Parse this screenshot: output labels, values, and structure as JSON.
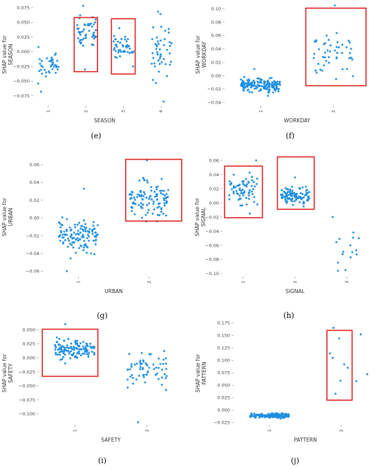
{
  "figure": {
    "background": "#ffffff",
    "point_color": "#1f8fe0",
    "box_color": "#e02020"
  },
  "chart_data": [
    {
      "type": "scatter",
      "panel": "(e)",
      "title": "",
      "xlabel": "SEASON",
      "ylabel": [
        "SHAP value for",
        "SEASON"
      ],
      "categories": [
        "1",
        "2",
        "3",
        "4"
      ],
      "xlim": [
        0.6,
        4.4
      ],
      "ylim": [
        -0.092,
        0.082
      ],
      "yticks": [
        -0.075,
        -0.05,
        -0.025,
        0.0,
        0.025,
        0.05,
        0.075
      ],
      "ytick_labels": [
        "−0.075",
        "−0.050",
        "−0.025",
        "0.000",
        "0.025",
        "0.050",
        "0.075"
      ],
      "groups": [
        {
          "category": "1",
          "n": 40,
          "min": -0.068,
          "max": 0.008,
          "center": -0.023,
          "spread": 0.015
        },
        {
          "category": "2",
          "n": 52,
          "min": -0.03,
          "max": 0.078,
          "center": 0.028,
          "spread": 0.022
        },
        {
          "category": "3",
          "n": 44,
          "min": -0.025,
          "max": 0.04,
          "center": 0.008,
          "spread": 0.014
        },
        {
          "category": "4",
          "n": 48,
          "min": -0.085,
          "max": 0.068,
          "center": -0.005,
          "spread": 0.035
        }
      ],
      "highlight_boxes": [
        {
          "x": [
            1.69,
            2.31
          ],
          "y": [
            -0.034,
            0.058
          ]
        },
        {
          "x": [
            2.68,
            3.31
          ],
          "y": [
            -0.038,
            0.056
          ]
        }
      ],
      "grid": false
    },
    {
      "type": "scatter",
      "panel": "(f)",
      "title": "",
      "xlabel": "WORKDAY",
      "ylabel": [
        "SHAP value for",
        "WORKDAY"
      ],
      "categories": [
        "1",
        "2"
      ],
      "xlim": [
        0.5,
        2.5
      ],
      "ylim": [
        -0.045,
        0.108
      ],
      "yticks": [
        -0.04,
        -0.02,
        0.0,
        0.02,
        0.04,
        0.06,
        0.08,
        0.1
      ],
      "ytick_labels": [
        "−0.04",
        "−0.02",
        "0.00",
        "0.02",
        "0.04",
        "0.06",
        "0.08",
        "0.10"
      ],
      "groups": [
        {
          "category": "1",
          "n": 160,
          "min": -0.03,
          "max": 0.01,
          "center": -0.014,
          "spread": 0.007
        },
        {
          "category": "2",
          "n": 48,
          "min": -0.005,
          "max": 0.105,
          "center": 0.035,
          "spread": 0.02
        }
      ],
      "highlight_boxes": [
        {
          "x": [
            1.62,
            2.45
          ],
          "y": [
            -0.015,
            0.101
          ]
        }
      ],
      "grid": false
    },
    {
      "type": "scatter",
      "panel": "(g)",
      "title": "",
      "xlabel": "URBAN",
      "ylabel": [
        "SHAP value for",
        "URBAN"
      ],
      "categories": [
        "1",
        "2"
      ],
      "xlim": [
        0.5,
        2.5
      ],
      "ylim": [
        -0.066,
        0.068
      ],
      "yticks": [
        -0.06,
        -0.04,
        -0.02,
        0.0,
        0.02,
        0.04,
        0.06
      ],
      "ytick_labels": [
        "−0.06",
        "−0.04",
        "−0.02",
        "0.00",
        "0.02",
        "0.04",
        "0.06"
      ],
      "groups": [
        {
          "category": "1",
          "n": 120,
          "min": -0.06,
          "max": 0.033,
          "center": -0.022,
          "spread": 0.013
        },
        {
          "category": "2",
          "n": 110,
          "min": -0.004,
          "max": 0.065,
          "center": 0.02,
          "spread": 0.014
        }
      ],
      "highlight_boxes": [
        {
          "x": [
            1.67,
            2.46
          ],
          "y": [
            -0.0035,
            0.066
          ]
        }
      ],
      "grid": false
    },
    {
      "type": "scatter",
      "panel": "(h)",
      "title": "",
      "xlabel": "SIGNAL",
      "ylabel": [
        "SHAP value for",
        "SIGNAL"
      ],
      "categories": [
        "1",
        "2",
        "3"
      ],
      "xlim": [
        0.6,
        3.4
      ],
      "ylim": [
        -0.104,
        0.064
      ],
      "yticks": [
        -0.1,
        -0.08,
        -0.06,
        -0.04,
        -0.02,
        0.0,
        0.02,
        0.04,
        0.06
      ],
      "ytick_labels": [
        "−0.10",
        "−0.08",
        "−0.06",
        "−0.04",
        "−0.02",
        "0.00",
        "0.02",
        "0.04",
        "0.06"
      ],
      "groups": [
        {
          "category": "1",
          "n": 70,
          "min": -0.015,
          "max": 0.06,
          "center": 0.02,
          "spread": 0.015
        },
        {
          "category": "2",
          "n": 110,
          "min": -0.005,
          "max": 0.036,
          "center": 0.01,
          "spread": 0.009
        },
        {
          "category": "3",
          "n": 16,
          "min": -0.096,
          "max": -0.02,
          "center": -0.058,
          "spread": 0.02
        }
      ],
      "highlight_boxes": [
        {
          "x": [
            0.64,
            1.37
          ],
          "y": [
            -0.021,
            0.052
          ]
        },
        {
          "x": [
            1.66,
            2.37
          ],
          "y": [
            -0.009,
            0.065
          ]
        }
      ],
      "grid": false
    },
    {
      "type": "scatter",
      "panel": "(i)",
      "title": "",
      "xlabel": "SAFETY",
      "ylabel": [
        "SHAP value for",
        "SAFETY"
      ],
      "categories": [
        "1",
        "2"
      ],
      "xlim": [
        0.5,
        2.5
      ],
      "ylim": [
        -0.12,
        0.065
      ],
      "yticks": [
        -0.1,
        -0.075,
        -0.05,
        -0.025,
        0.0,
        0.025,
        0.05
      ],
      "ytick_labels": [
        "−0.100",
        "−0.075",
        "−0.050",
        "−0.025",
        "0.000",
        "0.025",
        "0.050"
      ],
      "groups": [
        {
          "category": "1",
          "n": 130,
          "min": -0.01,
          "max": 0.06,
          "center": 0.016,
          "spread": 0.011
        },
        {
          "category": "2",
          "n": 65,
          "min": -0.115,
          "max": 0.012,
          "center": -0.022,
          "spread": 0.018
        }
      ],
      "highlight_boxes": [
        {
          "x": [
            0.55,
            1.32
          ],
          "y": [
            -0.033,
            0.051
          ]
        }
      ],
      "grid": false
    },
    {
      "type": "scatter",
      "panel": "(j)",
      "title": "",
      "xlabel": "PATTERN",
      "ylabel": [
        "SHAP value for",
        "PATTERN"
      ],
      "categories": [
        "1",
        "2"
      ],
      "xlim": [
        0.5,
        2.5
      ],
      "ylim": [
        -0.03,
        0.178
      ],
      "yticks": [
        -0.025,
        0.0,
        0.025,
        0.05,
        0.075,
        0.1,
        0.125,
        0.15,
        0.175
      ],
      "ytick_labels": [
        "−0.025",
        "0.000",
        "0.025",
        "0.050",
        "0.075",
        "0.100",
        "0.125",
        "0.150",
        "0.175"
      ],
      "groups": [
        {
          "category": "1",
          "n": 170,
          "min": -0.017,
          "max": -0.006,
          "center": -0.011,
          "spread": 0.003
        }
      ],
      "points": [
        [
          1.89,
          0.165
        ],
        [
          2.27,
          0.152
        ],
        [
          1.97,
          0.144
        ],
        [
          1.84,
          0.114
        ],
        [
          1.88,
          0.105
        ],
        [
          2.04,
          0.092
        ],
        [
          2.09,
          0.085
        ],
        [
          2.36,
          0.072
        ],
        [
          2.21,
          0.058
        ],
        [
          1.99,
          0.059
        ],
        [
          1.92,
          0.033
        ]
      ],
      "highlight_boxes": [
        {
          "x": [
            1.8,
            2.15
          ],
          "y": [
            0.02,
            0.16
          ]
        }
      ],
      "grid": false
    }
  ]
}
